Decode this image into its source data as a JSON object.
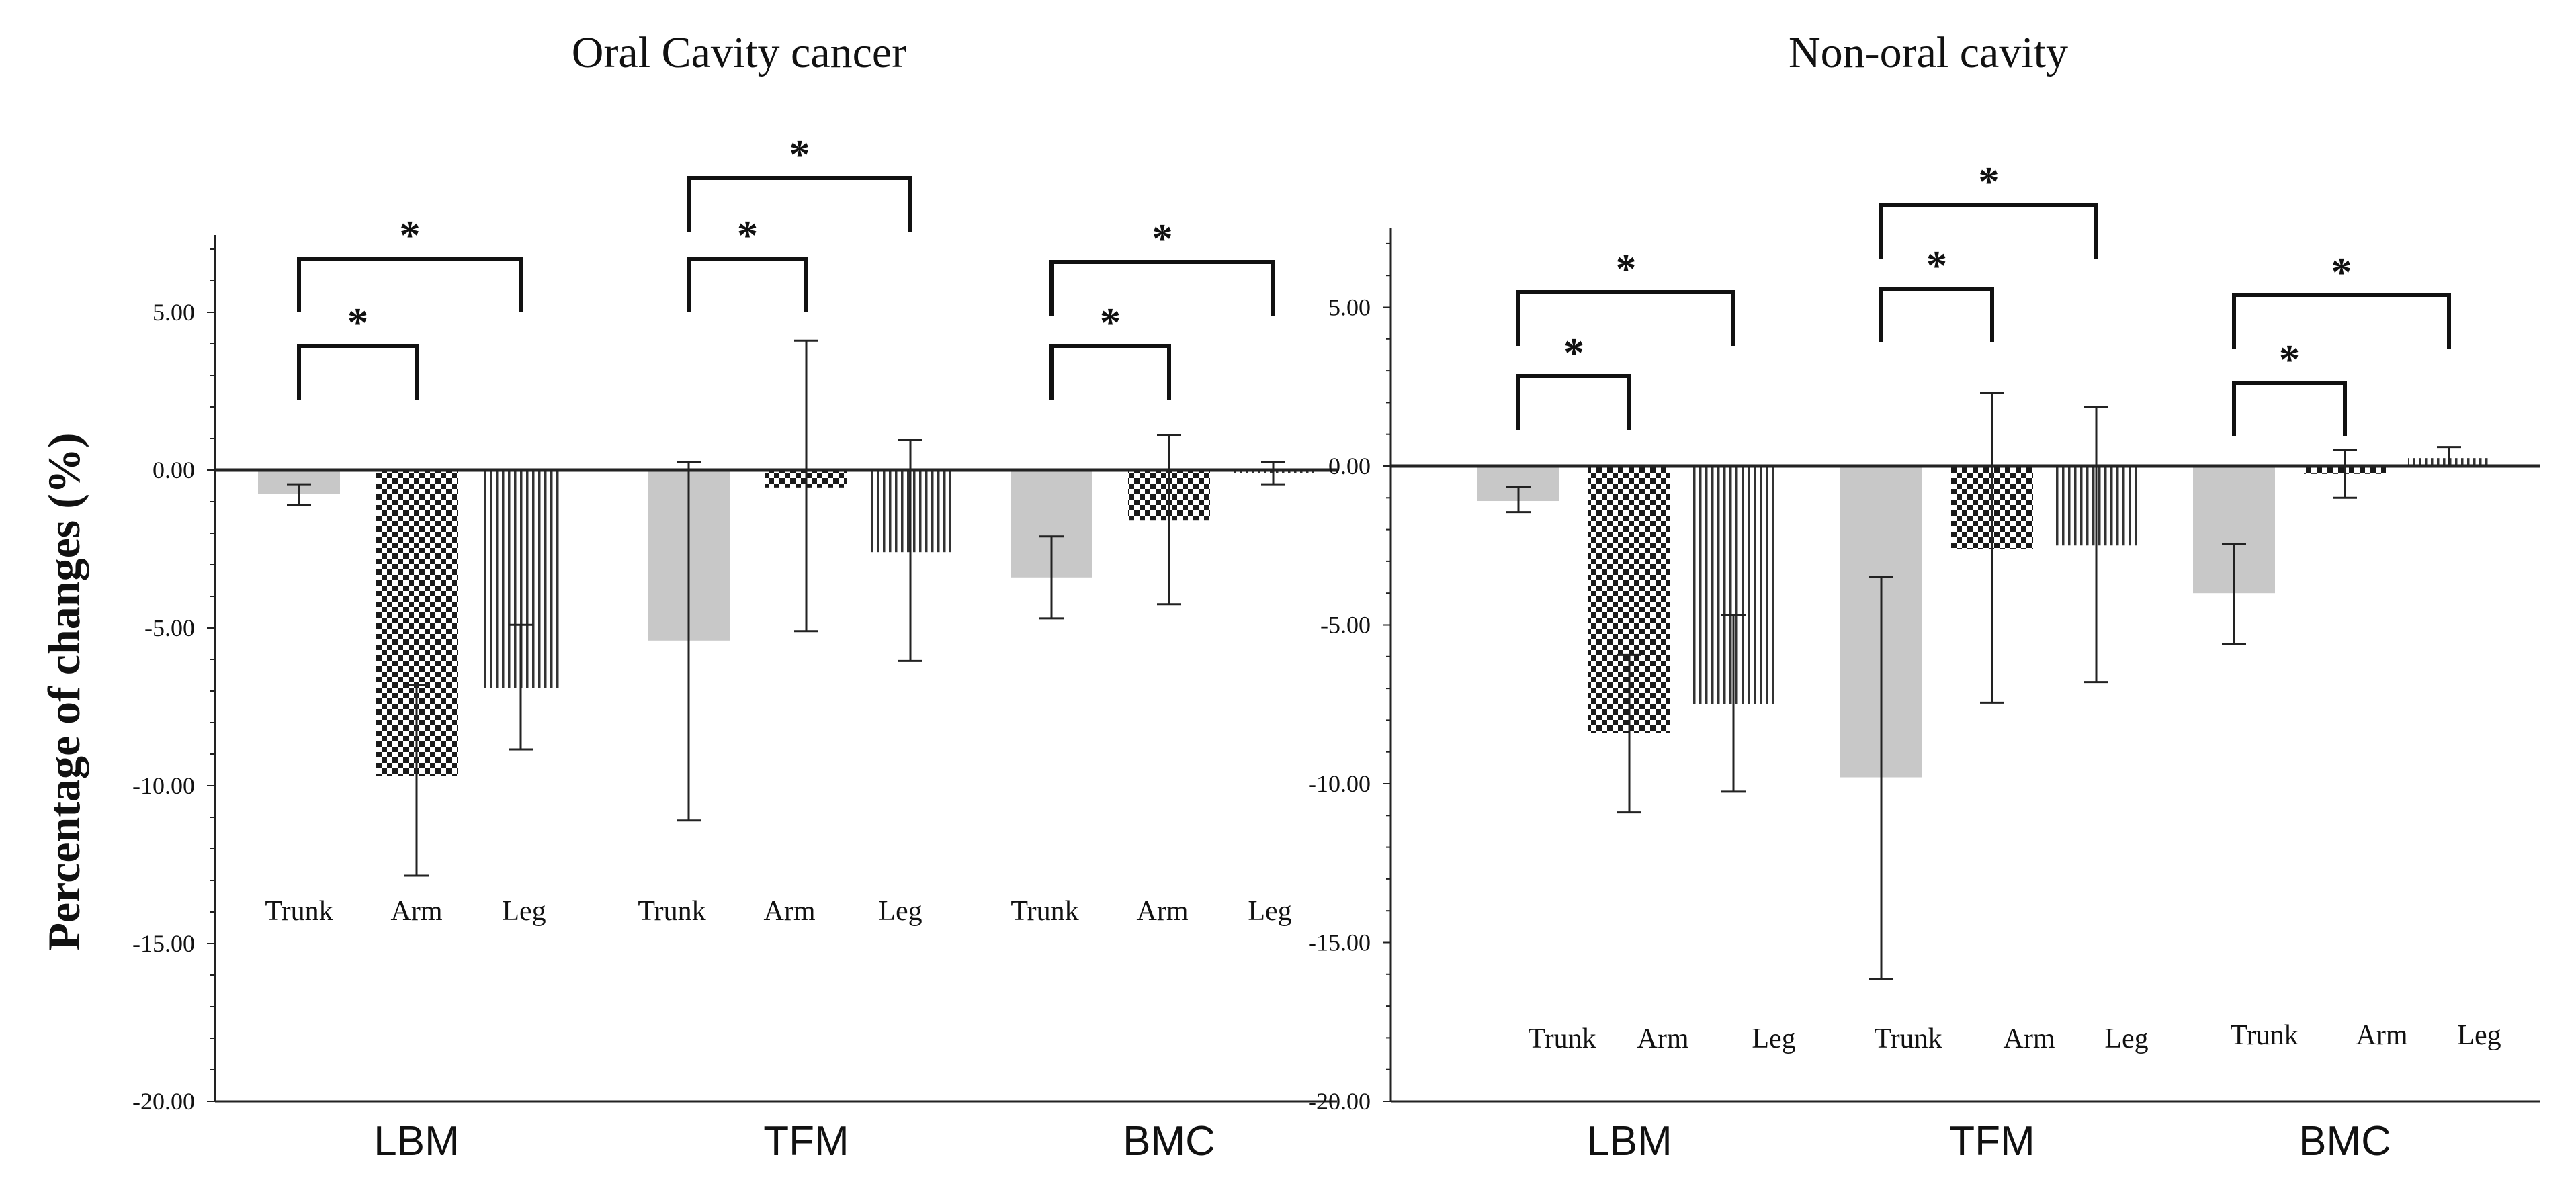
{
  "ylabel": "Percentage of changes (%)",
  "ylim": [
    -20,
    7.5
  ],
  "yticks": [
    "5.00",
    "0.00",
    "-5.00",
    "-10.00",
    "-15.00",
    "-20.00"
  ],
  "ytick_values": [
    5,
    0,
    -5,
    -10,
    -15,
    -20
  ],
  "bar_labels": [
    "Trunk",
    "Arm",
    "Leg"
  ],
  "group_labels": [
    "LBM",
    "TFM",
    "BMC"
  ],
  "significance_marker": "*",
  "colors": {
    "trunk": "#c8c8c8",
    "pattern": "#222222",
    "axis": "#222222"
  },
  "chart_data": [
    {
      "type": "bar",
      "title": "Oral Cavity cancer",
      "ylabel": "Percentage of changes (%)",
      "ylim": [
        -20,
        7.5
      ],
      "groups": [
        "LBM",
        "TFM",
        "BMC"
      ],
      "series": [
        {
          "name": "Trunk",
          "values": [
            -0.75,
            -5.4,
            -3.4
          ],
          "err_low": [
            -1.1,
            -11.1,
            -4.7
          ],
          "err_high": [
            -0.45,
            0.25,
            -2.1
          ]
        },
        {
          "name": "Arm",
          "values": [
            -9.7,
            -0.55,
            -1.6
          ],
          "err_low": [
            -12.85,
            -5.1,
            -4.25
          ],
          "err_high": [
            -6.8,
            4.1,
            1.1
          ]
        },
        {
          "name": "Leg",
          "values": [
            -6.9,
            -2.6,
            -0.1
          ],
          "err_low": [
            -8.85,
            -6.05,
            -0.45
          ],
          "err_high": [
            -4.9,
            0.95,
            0.25
          ]
        }
      ],
      "significance": [
        {
          "group": "LBM",
          "from": "Trunk",
          "to": "Arm",
          "label": "*"
        },
        {
          "group": "LBM",
          "from": "Trunk",
          "to": "Leg",
          "label": "*"
        },
        {
          "group": "TFM",
          "from": "Trunk",
          "to": "Arm",
          "label": "*"
        },
        {
          "group": "TFM",
          "from": "Trunk",
          "to": "Leg",
          "label": "*"
        },
        {
          "group": "BMC",
          "from": "Trunk",
          "to": "Arm",
          "label": "*"
        },
        {
          "group": "BMC",
          "from": "Trunk",
          "to": "Leg",
          "label": "*"
        }
      ]
    },
    {
      "type": "bar",
      "title": "Non-oral cavity",
      "ylabel": "",
      "ylim": [
        -20,
        7.5
      ],
      "groups": [
        "LBM",
        "TFM",
        "BMC"
      ],
      "series": [
        {
          "name": "Trunk",
          "values": [
            -1.1,
            -9.8,
            -4.0
          ],
          "err_low": [
            -1.45,
            -16.15,
            -5.6
          ],
          "err_high": [
            -0.65,
            -3.5,
            -2.45
          ]
        },
        {
          "name": "Arm",
          "values": [
            -8.4,
            -2.6,
            -0.25
          ],
          "err_low": [
            -10.9,
            -7.45,
            -1.0
          ],
          "err_high": [
            -5.95,
            2.3,
            0.5
          ]
        },
        {
          "name": "Leg",
          "values": [
            -7.5,
            -2.5,
            0.25
          ],
          "err_low": [
            -10.25,
            -6.8,
            0.0
          ],
          "err_high": [
            -4.7,
            1.85,
            0.6
          ]
        }
      ],
      "significance": [
        {
          "group": "LBM",
          "from": "Trunk",
          "to": "Arm",
          "label": "*"
        },
        {
          "group": "LBM",
          "from": "Trunk",
          "to": "Leg",
          "label": "*"
        },
        {
          "group": "TFM",
          "from": "Trunk",
          "to": "Arm",
          "label": "*"
        },
        {
          "group": "TFM",
          "from": "Trunk",
          "to": "Leg",
          "label": "*"
        },
        {
          "group": "BMC",
          "from": "Trunk",
          "to": "Arm",
          "label": "*"
        },
        {
          "group": "BMC",
          "from": "Trunk",
          "to": "Leg",
          "label": "*"
        }
      ]
    }
  ]
}
